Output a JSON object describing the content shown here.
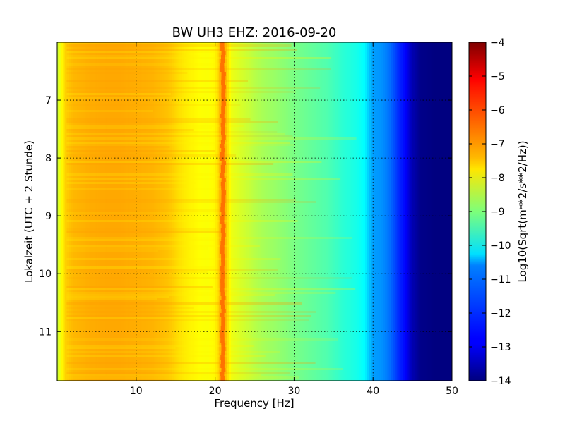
{
  "chart_data": {
    "type": "heatmap",
    "title": "BW UH3 EHZ: 2016-09-20",
    "xlabel": "Frequency [Hz]",
    "ylabel": "Lokalzeit (UTC + 2 Stunde)",
    "xlim": [
      0,
      50
    ],
    "ylim": [
      11.85,
      6.0
    ],
    "y_inverted": true,
    "x_ticks": [
      10,
      20,
      30,
      40,
      50
    ],
    "y_ticks": [
      7,
      8,
      9,
      10,
      11
    ],
    "grid": true,
    "colormap": "jet",
    "colorbar": {
      "label": "Log10(Sqrt(m**2/s**2/Hz))",
      "range": [
        -14,
        -4
      ],
      "ticks": [
        -4,
        -5,
        -6,
        -7,
        -8,
        -9,
        -10,
        -11,
        -12,
        -13,
        -14
      ]
    },
    "spectrum_profile": {
      "frequency_hz": [
        0,
        1,
        2,
        4,
        6,
        8,
        10,
        12,
        14,
        15,
        16,
        17,
        18,
        19,
        20,
        20.5,
        21,
        21.5,
        22,
        23,
        24,
        25,
        26,
        28,
        30,
        32,
        34,
        35,
        36,
        38,
        39,
        39.5,
        40,
        41,
        42,
        43,
        44,
        45,
        46,
        48,
        50
      ],
      "log10_amplitude": [
        -8.3,
        -7.3,
        -7.05,
        -6.95,
        -6.9,
        -6.9,
        -6.95,
        -7.0,
        -7.15,
        -7.35,
        -7.55,
        -7.65,
        -7.75,
        -7.8,
        -7.7,
        -7.2,
        -6.6,
        -7.3,
        -7.9,
        -8.1,
        -8.25,
        -8.45,
        -8.6,
        -8.8,
        -9.05,
        -9.25,
        -9.45,
        -9.6,
        -9.8,
        -10.05,
        -10.3,
        -10.8,
        -11.2,
        -11.3,
        -11.6,
        -12.2,
        -12.7,
        -13.5,
        -13.9,
        -14.0,
        -14.0
      ]
    }
  }
}
